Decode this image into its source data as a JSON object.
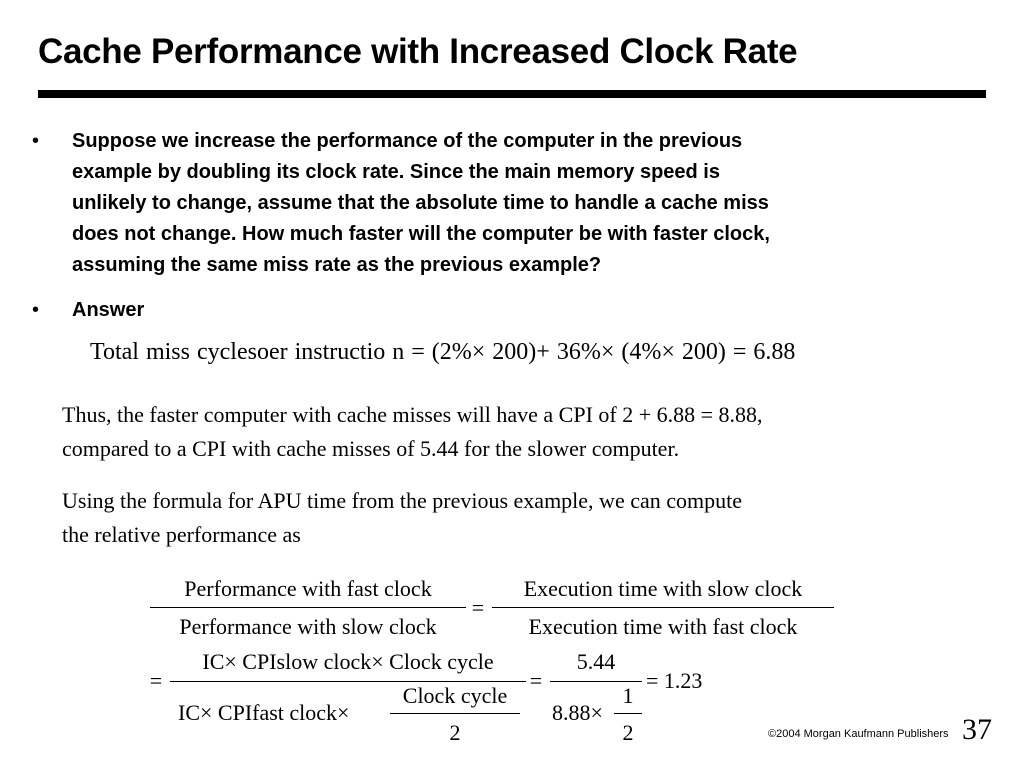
{
  "slide": {
    "title": "Cache Performance with Increased Clock Rate",
    "bullets": [
      {
        "marker": "•",
        "lines": [
          "Suppose we increase the performance of the computer in the previous",
          "example by doubling its clock rate. Since the main memory speed is",
          "unlikely to change, assume that the absolute time to handle a cache miss",
          "does not change. How much faster will the computer be with faster clock,",
          "assuming the same miss rate as the previous example?"
        ]
      },
      {
        "marker": "•",
        "lines": [
          "Answer"
        ]
      }
    ],
    "equation1": "Total miss cyclesoer instructio n = (2%× 200)+ 36%× (4%× 200) = 6.88",
    "paragraph1": [
      "Thus, the faster computer with cache misses will have a CPI of 2 + 6.88 = 8.88,",
      "compared to a CPI with cache misses of 5.44 for the slower computer."
    ],
    "paragraph2": [
      "Using the formula for APU time from the previous example, we can compute",
      "the relative performance as"
    ],
    "formula": {
      "lhs_num": "Performance with fast clock",
      "lhs_den": "Performance with slow clock",
      "eq": "=",
      "rhs_num": "Execution time with slow clock",
      "rhs_den": "Execution time with fast clock",
      "eq2": "=",
      "big_num": "IC× CPIslow clock× Clock cycle",
      "big_den_prefix": "IC× CPIfast clock×",
      "inner_num": "Clock cycle",
      "inner_den": "2",
      "eq3": "=",
      "r_num": "5.44",
      "r_den_prefix": "8.88×",
      "r_inner_num": "1",
      "r_inner_den": "2",
      "result": "= 1.23"
    },
    "footer": {
      "copyright": "©2004 Morgan Kaufmann Publishers",
      "page": "37"
    }
  }
}
